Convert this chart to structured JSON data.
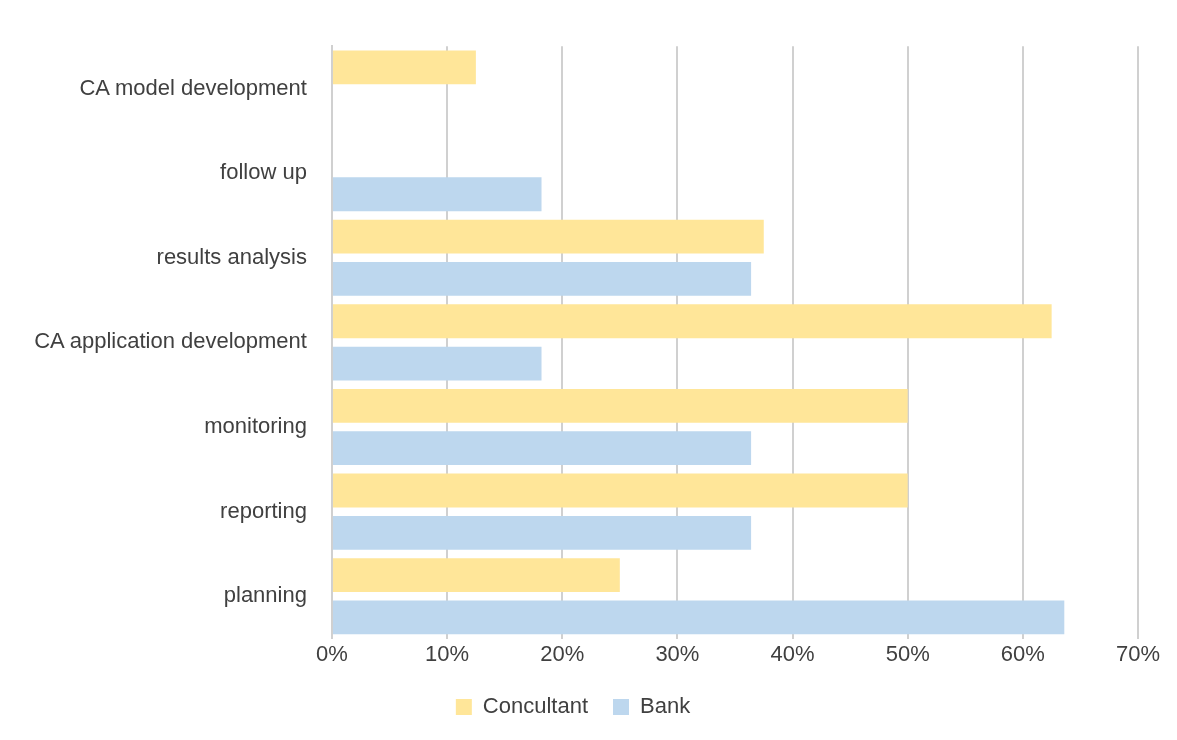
{
  "chart_data": {
    "type": "bar",
    "orientation": "horizontal",
    "categories": [
      "CA model development",
      "follow up",
      "results analysis",
      "CA application development",
      "monitoring",
      "reporting",
      "planning"
    ],
    "series": [
      {
        "name": "Concultant",
        "color": "#ffe699",
        "values": [
          12.5,
          null,
          37.5,
          62.5,
          50,
          50,
          25
        ]
      },
      {
        "name": "Bank",
        "color": "#bdd7ee",
        "values": [
          null,
          18.2,
          36.4,
          18.2,
          36.4,
          36.4,
          63.6
        ]
      }
    ],
    "xlim": [
      0,
      70
    ],
    "xticks": [
      {
        "value": 0,
        "label": "0%"
      },
      {
        "value": 10,
        "label": "10%"
      },
      {
        "value": 20,
        "label": "20%"
      },
      {
        "value": 30,
        "label": "30%"
      },
      {
        "value": 40,
        "label": "40%"
      },
      {
        "value": 50,
        "label": "50%"
      },
      {
        "value": 60,
        "label": "60%"
      },
      {
        "value": 70,
        "label": "70%"
      }
    ],
    "grid": "x",
    "legend": "bottom"
  }
}
